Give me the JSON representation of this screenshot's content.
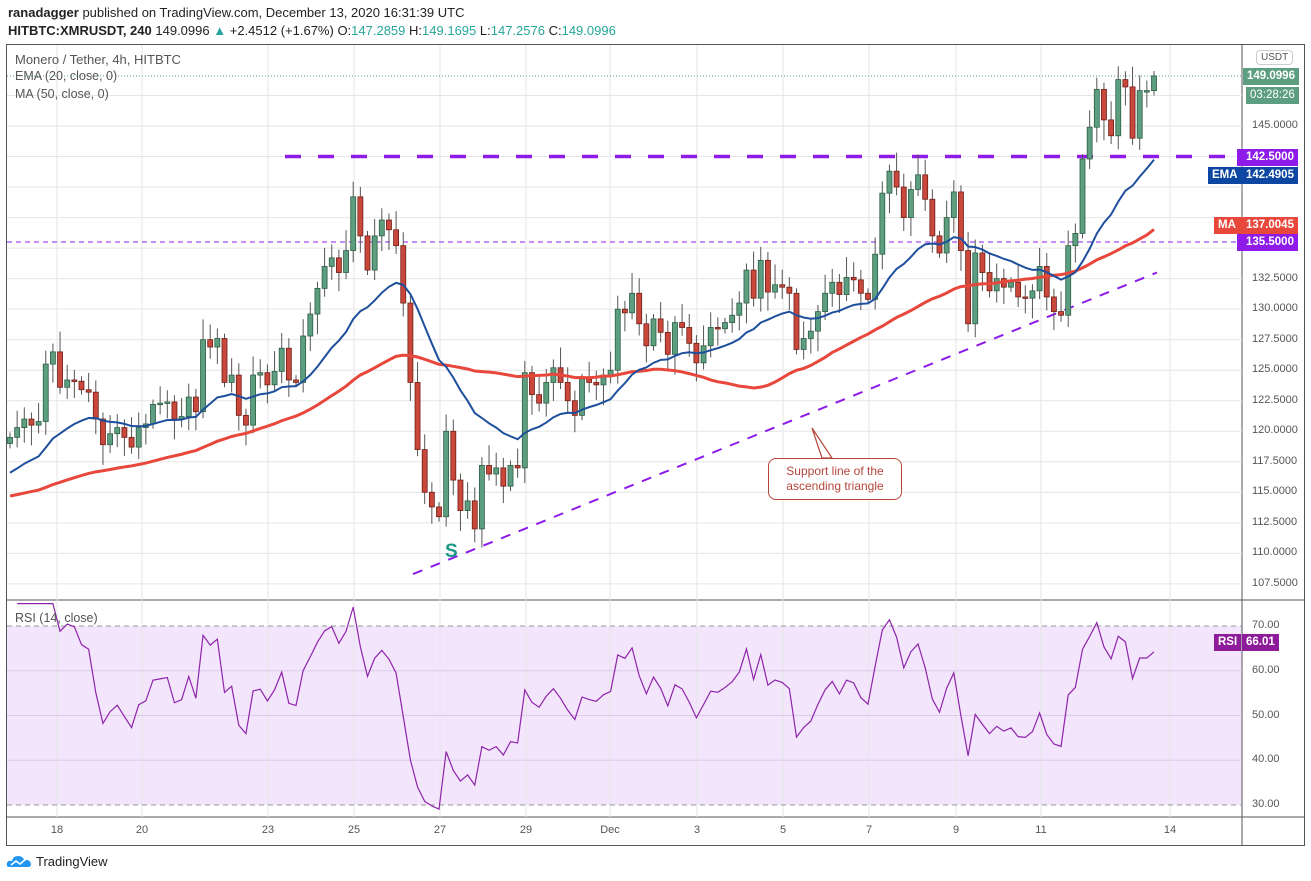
{
  "header": {
    "publisher": "ranadagger",
    "published_text": "published on TradingView.com, December 13, 2020 16:31:39 UTC",
    "symbol": "HITBTC:XMRUSDT, 240",
    "last": "149.0996",
    "change": "+2.4512 (+1.67%)",
    "o_label": "O:",
    "o": "147.2859",
    "h_label": "H:",
    "h": "149.1695",
    "l_label": "L:",
    "l": "147.2576",
    "c_label": "C:",
    "c": "149.0996"
  },
  "legend": {
    "title": "Monero / Tether, 4h, HITBTC",
    "ema": "EMA (20, close, 0)",
    "ma": "MA (50, close, 0)",
    "rsi": "RSI (14, close)"
  },
  "axis": {
    "currency": "USDT",
    "last_price": "149.0996",
    "countdown": "03:28:26",
    "resistance": "142.5000",
    "ema_label": "EMA",
    "ema_value": "142.4905",
    "ma_label": "MA",
    "ma_value": "137.0045",
    "level2": "135.5000",
    "price_ticks": [
      "145.0000",
      "132.5000",
      "130.0000",
      "127.5000",
      "125.0000",
      "122.5000",
      "120.0000",
      "117.5000",
      "115.0000",
      "112.5000",
      "110.0000",
      "107.5000"
    ],
    "rsi_label": "RSI",
    "rsi_value": "66.01",
    "rsi_ticks": [
      "70.00",
      "60.00",
      "50.00",
      "40.00",
      "30.00"
    ]
  },
  "annotation": {
    "text": "Support line of the ascending triangle",
    "marker": "S"
  },
  "logo": "TradingView",
  "colors": {
    "up": "#5c9e7f",
    "down": "#c9483b",
    "ema": "#1e4f9c",
    "ma": "#e8473b",
    "levels": "#8e1be8",
    "rsi": "#8e24aa"
  },
  "chart_data": {
    "type": "candlestick",
    "title": "Monero / Tether, 4h, HITBTC",
    "x_tick_labels": [
      "18",
      "20",
      "23",
      "25",
      "27",
      "29",
      "Dec",
      "3",
      "5",
      "7",
      "9",
      "11",
      "14"
    ],
    "ylim": [
      106,
      151
    ],
    "rsi_range": [
      30,
      70
    ],
    "first_open": 119.0,
    "closes": [
      119.5,
      120.3,
      121,
      120.5,
      120.8,
      125.5,
      126.5,
      123.6,
      124.2,
      124.1,
      123.4,
      123.2,
      121.0,
      118.9,
      119.8,
      120.3,
      119.5,
      118.7,
      120.3,
      120.6,
      122.2,
      122.3,
      122.4,
      121.0,
      121.2,
      122.8,
      121.6,
      127.5,
      126.9,
      127.6,
      124.0,
      124.6,
      121.3,
      120.5,
      124.6,
      124.8,
      123.8,
      124.9,
      126.8,
      124.2,
      124.0,
      127.8,
      129.6,
      131.7,
      133.5,
      134.2,
      133.0,
      134.8,
      139.2,
      136.0,
      133.2,
      136.0,
      137.3,
      136.5,
      135.2,
      130.5,
      124.0,
      118.5,
      115.0,
      113.8,
      113.0,
      120.0,
      116.0,
      113.5,
      114.3,
      112.0,
      117.2,
      116.5,
      117.0,
      115.5,
      117.2,
      117.0,
      124.8,
      123.0,
      122.3,
      124.0,
      125.2,
      124.0,
      122.5,
      121.3,
      124.3,
      124.0,
      123.8,
      124.6,
      125.0,
      130.0,
      129.7,
      131.3,
      128.8,
      127.0,
      129.2,
      128.1,
      126.3,
      128.9,
      128.5,
      127.2,
      125.6,
      127.0,
      128.5,
      128.4,
      128.9,
      129.5,
      130.5,
      133.2,
      130.9,
      134.0,
      131.4,
      132.0,
      131.8,
      131.3,
      126.7,
      127.6,
      128.2,
      129.8,
      131.3,
      132.2,
      131.2,
      132.6,
      132.4,
      131.3,
      130.8,
      134.5,
      139.5,
      141.3,
      140.0,
      137.5,
      139.8,
      141.0,
      139.0,
      136.0,
      134.6,
      137.5,
      139.6,
      134.8,
      128.8,
      134.6,
      133.0,
      131.5,
      132.5,
      131.8,
      132.2,
      131.0,
      130.9,
      131.5,
      133.5,
      131.0,
      129.8,
      129.5,
      135.2,
      136.2,
      142.3,
      144.9,
      148.0,
      145.5,
      144.2,
      148.8,
      148.2,
      144.0,
      147.9,
      147.9,
      149.1
    ],
    "ema_period": 20,
    "ema_seed": 116.3,
    "ma_period": 50,
    "ma_seed": 114.6,
    "rsi_period": 14,
    "horizontal_levels": [
      142.5,
      135.5
    ],
    "support_line": {
      "from_price": 108.3,
      "to_price": 133.0
    }
  }
}
